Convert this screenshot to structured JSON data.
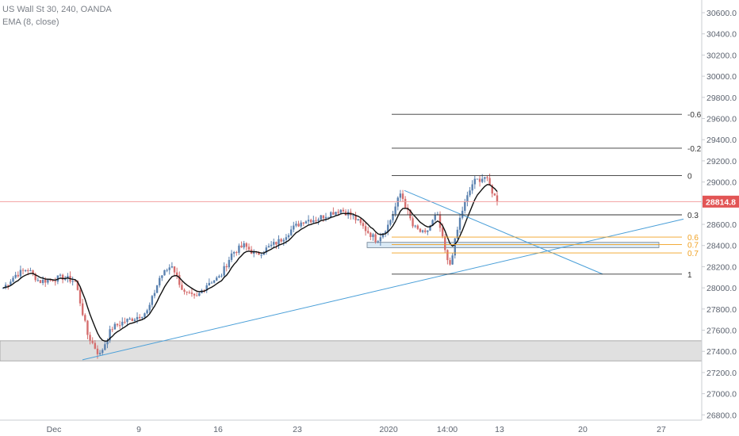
{
  "header": {
    "symbol_line": "US Wall St 30, 240, OANDA",
    "indicator_line": "EMA (8, close)"
  },
  "colors": {
    "up": "#5b82b0",
    "down": "#d56e6e",
    "ema": "#111111",
    "trendline": "#4a9fd8",
    "fib_main": "#333333",
    "fib_orange": "#f0a020",
    "price_line": "#f2a0a0",
    "price_badge": "#e25555",
    "zone": "#d6d6d6",
    "zone_blue": "#cfe3f2"
  },
  "chart_data": {
    "type": "candlestick",
    "title": "US Wall St 30, 240, OANDA",
    "indicator": "EMA (8, close)",
    "ylim": [
      26750,
      30720
    ],
    "y_ticks": [
      26800,
      27000,
      27200,
      27400,
      27600,
      27800,
      28000,
      28200,
      28400,
      28600,
      28800,
      29000,
      29200,
      29400,
      29600,
      29800,
      30000,
      30200,
      30400,
      30600
    ],
    "y_tick_labels": [
      "26800.0",
      "27000.0",
      "27200.0",
      "27400.0",
      "27600.0",
      "27800.0",
      "28000.0",
      "28200.0",
      "28400.0",
      "28600.0",
      "28800.0",
      "29000.0",
      "29200.0",
      "29400.0",
      "29600.0",
      "29800.0",
      "30000.0",
      "30200.0",
      "30400.0",
      "30600.0"
    ],
    "x_tick_labels": [
      "Dec",
      "9",
      "16",
      "23",
      "2020",
      "14:00",
      "13",
      "20",
      "27"
    ],
    "last_price": 28814.8,
    "last_price_label": "28814.8",
    "fib_levels": [
      {
        "label": "-0.6",
        "value": 29640
      },
      {
        "label": "-0.2",
        "value": 29320
      },
      {
        "label": "0",
        "value": 29060
      },
      {
        "label": "0.3",
        "value": 28690
      },
      {
        "label": "0.6",
        "value": 28480
      },
      {
        "label": "0.7",
        "value": 28410
      },
      {
        "label": "0.7",
        "value": 28330
      },
      {
        "label": "1",
        "value": 28130
      }
    ],
    "zones": [
      {
        "from": 27310,
        "to": 27500
      },
      {
        "from": 28380,
        "to": 28430
      }
    ],
    "trendlines": [
      {
        "name": "rising support",
        "from": 27320,
        "to": 28650
      },
      {
        "name": "falling resistance",
        "from": 28920,
        "to": 28130
      }
    ],
    "ohlc_anchors": [
      28000,
      28120,
      28180,
      28060,
      28080,
      28100,
      28060,
      27560,
      27360,
      27620,
      27680,
      27720,
      27780,
      28100,
      28220,
      27950,
      27900,
      28050,
      28100,
      28330,
      28400,
      28310,
      28380,
      28450,
      28560,
      28640,
      28650,
      28700,
      28740,
      28680,
      28560,
      28450,
      28600,
      28900,
      28580,
      28500,
      28700,
      28180,
      28700,
      29000,
      29050,
      28814.8
    ]
  }
}
